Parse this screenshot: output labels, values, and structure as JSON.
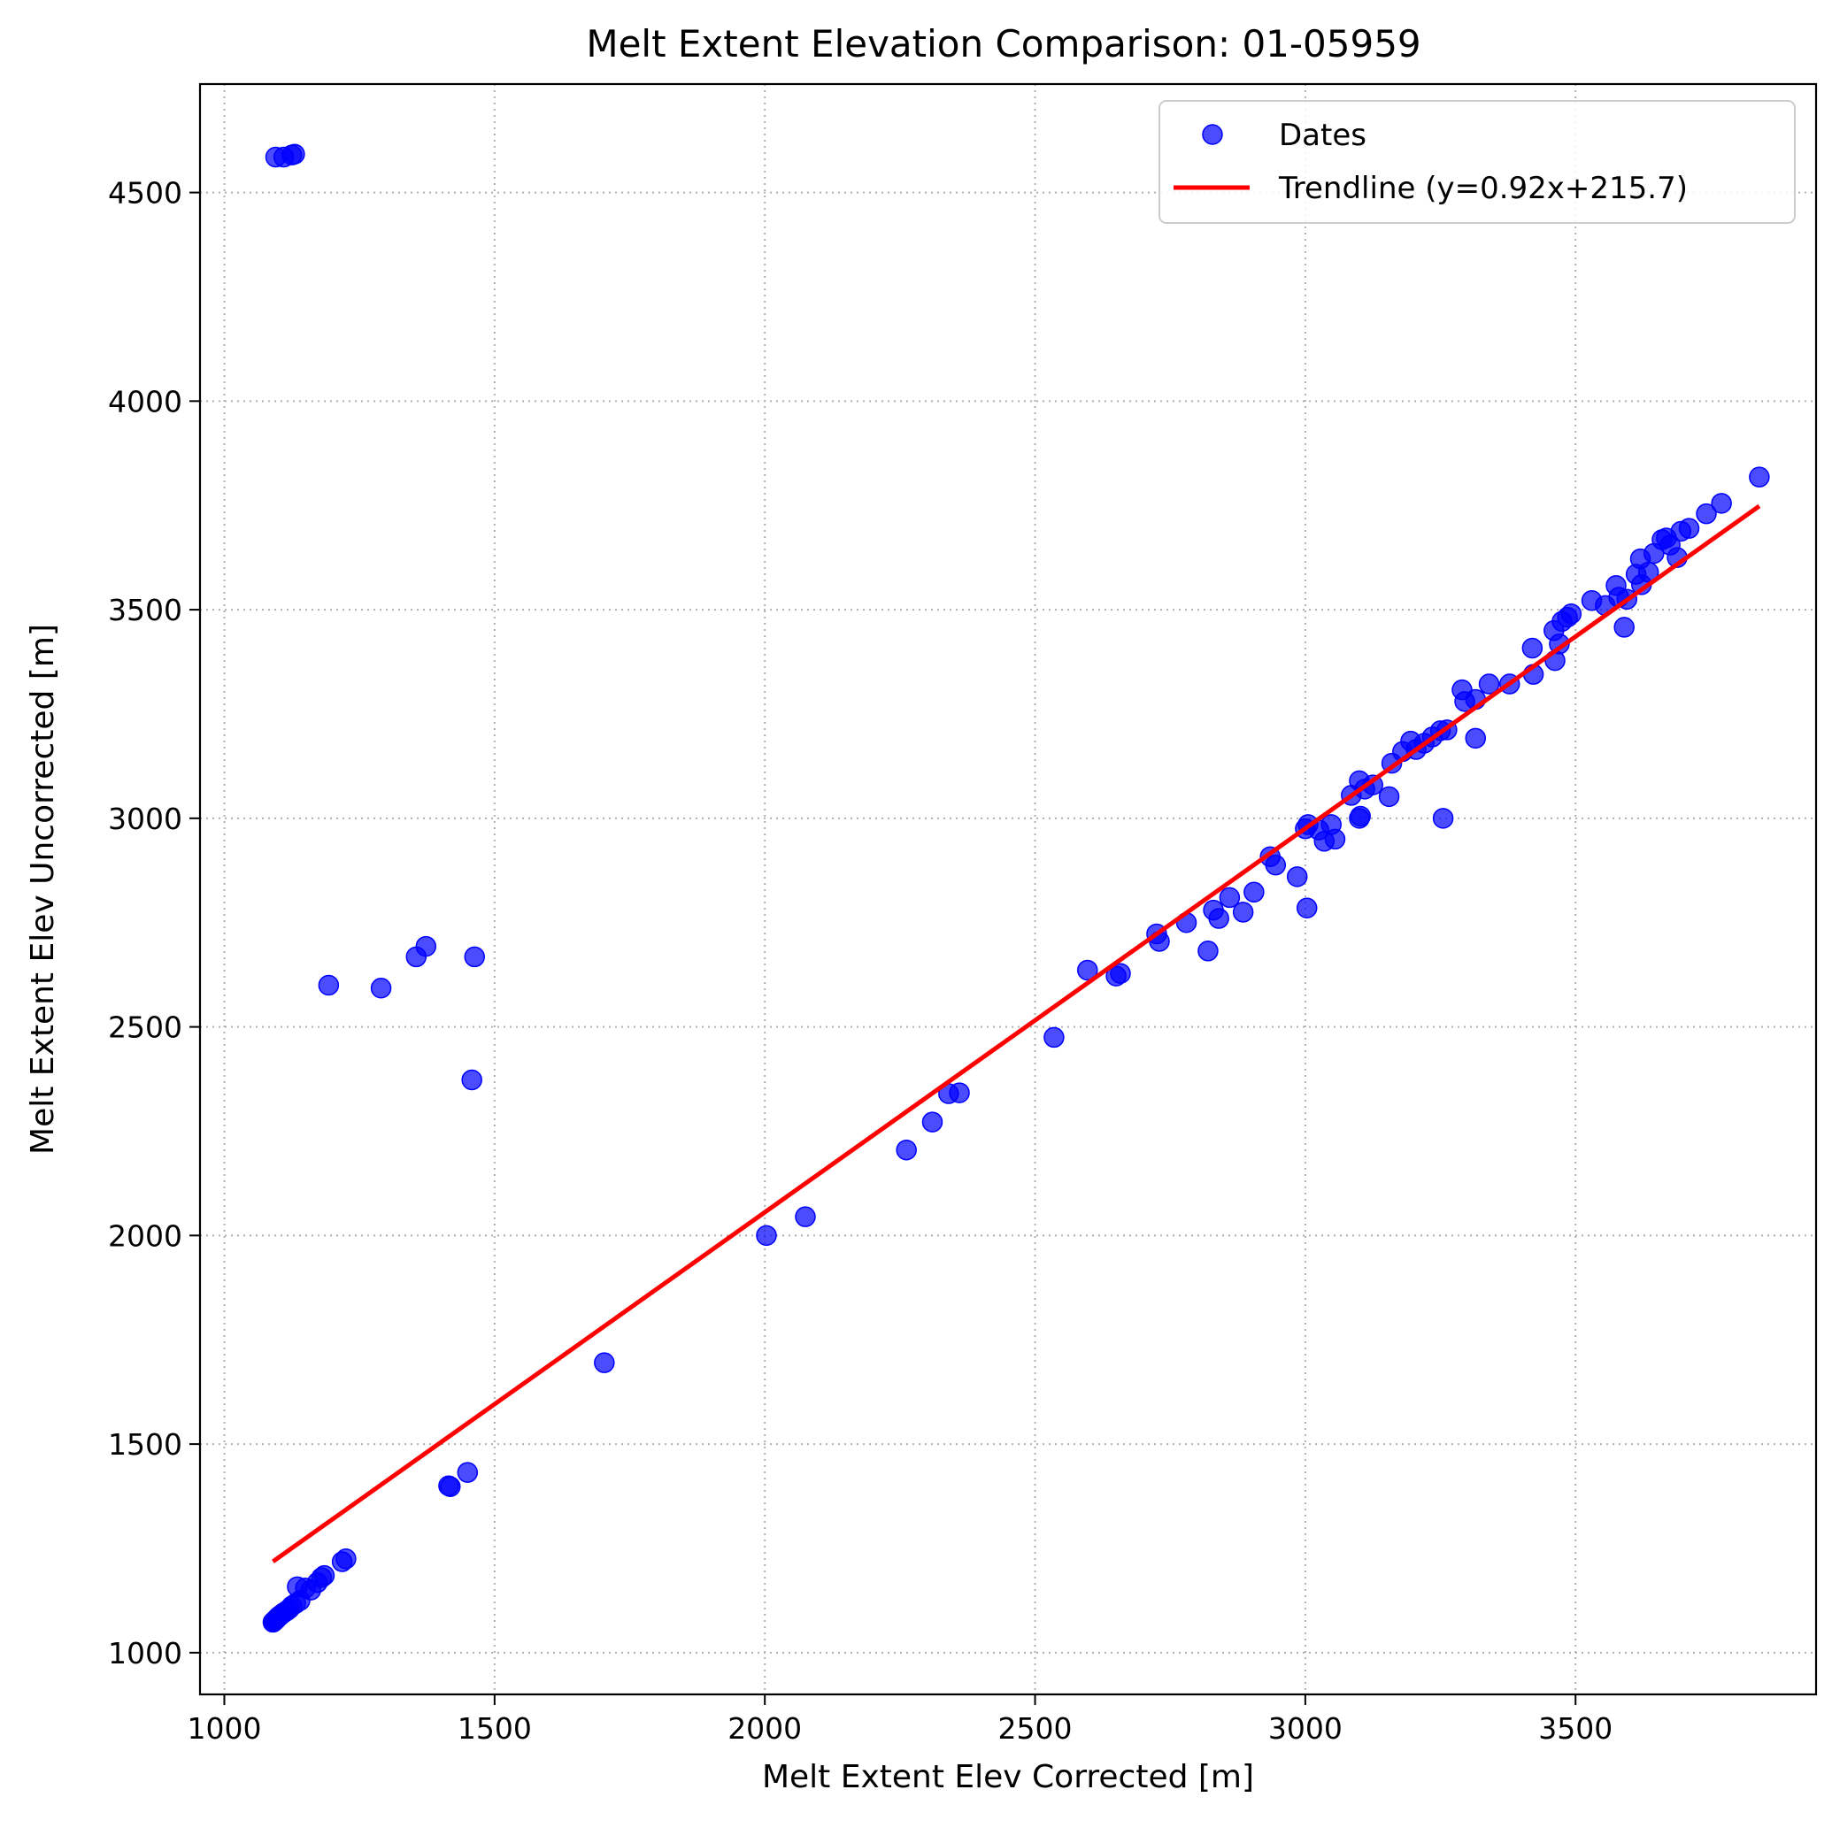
{
  "chart_data": {
    "type": "scatter",
    "title": "Melt Extent Elevation Comparison: 01-05959",
    "xlabel": "Melt Extent Elev Corrected [m]",
    "ylabel": "Melt Extent Elev Uncorrected [m]",
    "xlim": [
      955,
      3945
    ],
    "ylim": [
      900,
      4760
    ],
    "xticks": [
      1000,
      1500,
      2000,
      2500,
      3000,
      3500
    ],
    "yticks": [
      1000,
      1500,
      2000,
      2500,
      3000,
      3500,
      4000,
      4500
    ],
    "grid": true,
    "legend_position": "top-right",
    "colors": {
      "points": "#0000ff",
      "trendline": "#ff0000"
    },
    "series": [
      {
        "name": "Dates",
        "type": "scatter",
        "points": [
          [
            1095,
            4585
          ],
          [
            1110,
            4585
          ],
          [
            1125,
            4590
          ],
          [
            1130,
            4592
          ],
          [
            1193,
            2600
          ],
          [
            1290,
            2593
          ],
          [
            1355,
            2668
          ],
          [
            1373,
            2693
          ],
          [
            1463,
            2668
          ],
          [
            1458,
            2373
          ],
          [
            1090,
            1073
          ],
          [
            1092,
            1075
          ],
          [
            1094,
            1078
          ],
          [
            1096,
            1080
          ],
          [
            1098,
            1083
          ],
          [
            1100,
            1086
          ],
          [
            1103,
            1089
          ],
          [
            1106,
            1092
          ],
          [
            1110,
            1096
          ],
          [
            1115,
            1100
          ],
          [
            1120,
            1105
          ],
          [
            1125,
            1112
          ],
          [
            1132,
            1118
          ],
          [
            1140,
            1125
          ],
          [
            1135,
            1158
          ],
          [
            1150,
            1155
          ],
          [
            1160,
            1150
          ],
          [
            1172,
            1168
          ],
          [
            1180,
            1180
          ],
          [
            1185,
            1185
          ],
          [
            1218,
            1218
          ],
          [
            1225,
            1225
          ],
          [
            1415,
            1400
          ],
          [
            1418,
            1398
          ],
          [
            1450,
            1432
          ],
          [
            1703,
            1695
          ],
          [
            2003,
            2000
          ],
          [
            2075,
            2045
          ],
          [
            2262,
            2205
          ],
          [
            2310,
            2272
          ],
          [
            2340,
            2340
          ],
          [
            2360,
            2342
          ],
          [
            2535,
            2475
          ],
          [
            2597,
            2636
          ],
          [
            2650,
            2622
          ],
          [
            2658,
            2628
          ],
          [
            2725,
            2723
          ],
          [
            2730,
            2705
          ],
          [
            2780,
            2750
          ],
          [
            2820,
            2682
          ],
          [
            2830,
            2780
          ],
          [
            2840,
            2760
          ],
          [
            2860,
            2810
          ],
          [
            2885,
            2775
          ],
          [
            2905,
            2823
          ],
          [
            2935,
            2908
          ],
          [
            2945,
            2888
          ],
          [
            2985,
            2860
          ],
          [
            3000,
            2975
          ],
          [
            3005,
            2985
          ],
          [
            3003,
            2785
          ],
          [
            3025,
            2972
          ],
          [
            3035,
            2945
          ],
          [
            3048,
            2985
          ],
          [
            3055,
            2950
          ],
          [
            3085,
            3055
          ],
          [
            3100,
            3000
          ],
          [
            3102,
            3005
          ],
          [
            3100,
            3090
          ],
          [
            3110,
            3070
          ],
          [
            3125,
            3080
          ],
          [
            3155,
            3052
          ],
          [
            3160,
            3132
          ],
          [
            3180,
            3160
          ],
          [
            3195,
            3185
          ],
          [
            3205,
            3165
          ],
          [
            3220,
            3180
          ],
          [
            3235,
            3195
          ],
          [
            3250,
            3210
          ],
          [
            3255,
            3000
          ],
          [
            3262,
            3212
          ],
          [
            3290,
            3308
          ],
          [
            3295,
            3280
          ],
          [
            3315,
            3192
          ],
          [
            3315,
            3285
          ],
          [
            3340,
            3322
          ],
          [
            3378,
            3322
          ],
          [
            3420,
            3408
          ],
          [
            3422,
            3345
          ],
          [
            3460,
            3450
          ],
          [
            3462,
            3378
          ],
          [
            3470,
            3418
          ],
          [
            3475,
            3472
          ],
          [
            3485,
            3482
          ],
          [
            3492,
            3490
          ],
          [
            3530,
            3522
          ],
          [
            3555,
            3510
          ],
          [
            3575,
            3558
          ],
          [
            3580,
            3530
          ],
          [
            3590,
            3458
          ],
          [
            3595,
            3525
          ],
          [
            3612,
            3585
          ],
          [
            3620,
            3622
          ],
          [
            3622,
            3560
          ],
          [
            3635,
            3590
          ],
          [
            3645,
            3635
          ],
          [
            3660,
            3668
          ],
          [
            3668,
            3672
          ],
          [
            3675,
            3655
          ],
          [
            3688,
            3625
          ],
          [
            3695,
            3688
          ],
          [
            3710,
            3695
          ],
          [
            3742,
            3730
          ],
          [
            3770,
            3755
          ],
          [
            3840,
            3818
          ]
        ]
      },
      {
        "name": "Trendline (y=0.92x+215.7)",
        "type": "line",
        "slope": 0.92,
        "intercept": 215.7,
        "x_range": [
          1090,
          3840
        ]
      }
    ]
  }
}
